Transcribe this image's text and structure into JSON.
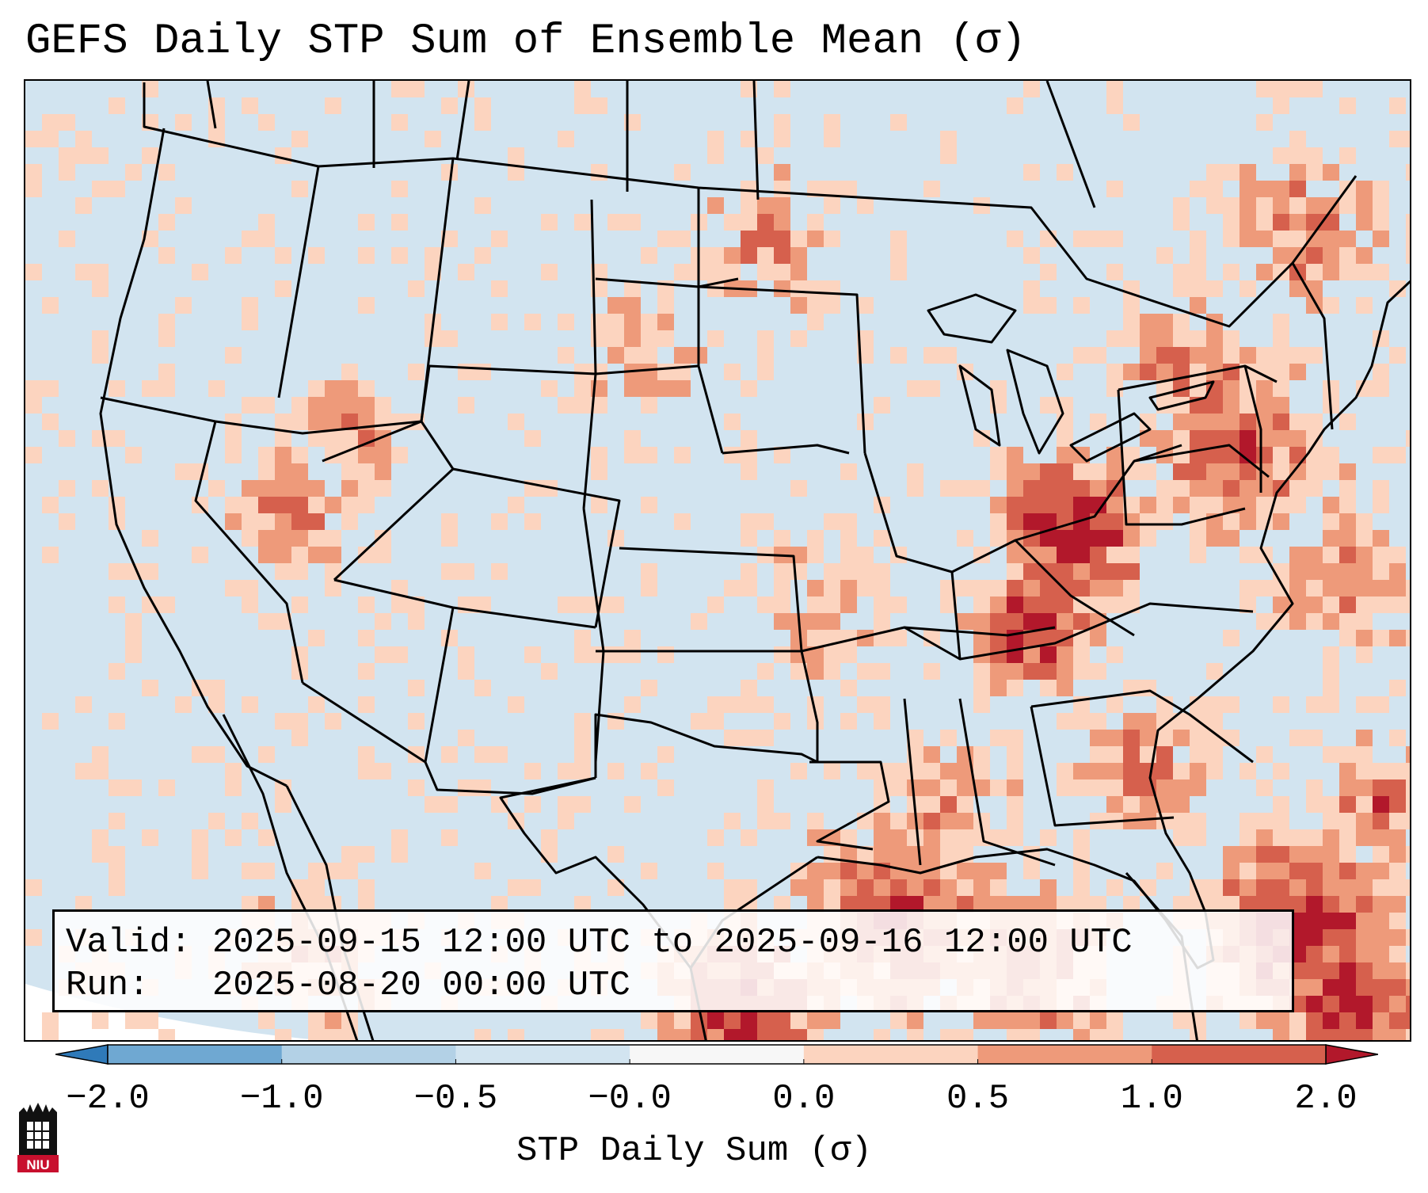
{
  "title": "GEFS Daily STP Sum of Ensemble Mean (σ)",
  "info": {
    "valid_label": "Valid:",
    "valid_value": "2025-09-15 12:00 UTC to 2025-09-16 12:00 UTC",
    "run_label": "Run:",
    "run_value": "2025-08-20 00:00 UTC"
  },
  "colorbar": {
    "label": "STP Daily Sum (σ)",
    "ticks": [
      "−2.0",
      "−1.0",
      "−0.5",
      "−0.0",
      "0.0",
      "0.5",
      "1.0",
      "2.0"
    ],
    "bins": [
      {
        "color": "#2f7ab9"
      },
      {
        "color": "#6fa8d2"
      },
      {
        "color": "#b3d1e6"
      },
      {
        "color": "#d2e4f0"
      },
      {
        "color": "#f7f7f7"
      },
      {
        "color": "#fcd4bf"
      },
      {
        "color": "#ee9a7a"
      },
      {
        "color": "#d6604d"
      },
      {
        "color": "#b2182b"
      }
    ],
    "under_color": "#2f7ab9",
    "over_color": "#b2182b"
  },
  "map": {
    "background_color": "#d2e4f0",
    "region": "Contiguous United States",
    "anomaly_regions": [
      {
        "area": "Ohio Valley / Kentucky / Tennessee",
        "level": "1.0 to 2.0"
      },
      {
        "area": "Mid-Atlantic and Northeast",
        "level": "0.0 to 1.0"
      },
      {
        "area": "Gulf of Mexico",
        "level": "0.5 to 2.0"
      },
      {
        "area": "Bahamas / Western Atlantic",
        "level": "above 2.0"
      },
      {
        "area": "Northern Plains / Dakotas",
        "level": "0.0 to 0.5"
      },
      {
        "area": "Nevada / Utah",
        "level": "0.0 to 1.0"
      }
    ]
  },
  "logo": {
    "text": "NIU",
    "color": "#c8102e"
  }
}
